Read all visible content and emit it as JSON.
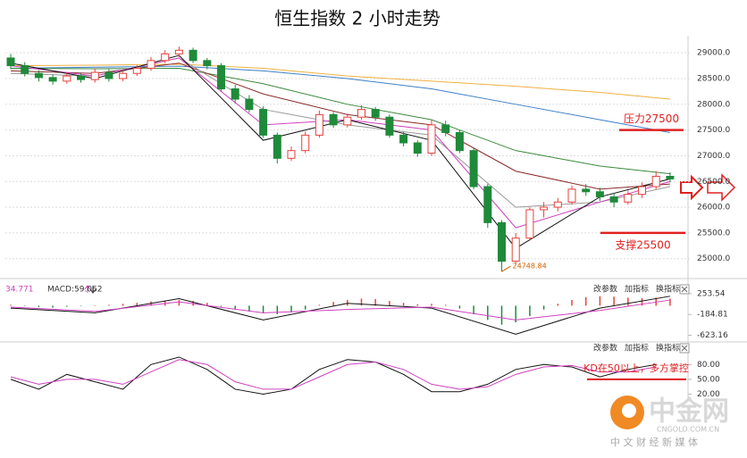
{
  "title": "恒生指数 2 小时走势",
  "watermark": {
    "name": "中金网",
    "domain": "CNGOLD.COM.CN",
    "slogan": "中 文 财 经 新 媒 体"
  },
  "chart_data": [
    {
      "type": "candlestick",
      "up_color": "#e8413c",
      "down_color": "#1f8a3a",
      "open": [
        28900,
        28750,
        28600,
        28520,
        28450,
        28550,
        28480,
        28620,
        28500,
        28600,
        28700,
        28850,
        28980,
        29050,
        28850,
        28750,
        28300,
        28100,
        27900,
        27400,
        26950,
        27100,
        27400,
        27800,
        27600,
        27750,
        27900,
        27750,
        27400,
        27250,
        27050,
        27600,
        27450,
        27100,
        26400,
        25700,
        24950,
        25400,
        25950,
        26000,
        26100,
        26350,
        26300,
        26200,
        26100,
        26250,
        26400,
        26600
      ],
      "high": [
        28980,
        28820,
        28660,
        28580,
        28620,
        28600,
        28700,
        28680,
        28660,
        28760,
        28920,
        29050,
        29120,
        29100,
        28900,
        28800,
        28380,
        28180,
        27960,
        27450,
        27180,
        27470,
        27880,
        27850,
        27820,
        27980,
        27950,
        27800,
        27460,
        27300,
        27700,
        27680,
        27500,
        27150,
        26450,
        25750,
        25500,
        26000,
        26100,
        26180,
        26420,
        26450,
        26380,
        26280,
        26320,
        26480,
        26700,
        26680
      ],
      "low": [
        28680,
        28540,
        28440,
        28380,
        28400,
        28420,
        28420,
        28440,
        28450,
        28550,
        28650,
        28800,
        28920,
        28800,
        28680,
        28250,
        28020,
        27840,
        27350,
        26850,
        26900,
        27050,
        27350,
        27540,
        27550,
        27700,
        27680,
        27350,
        27180,
        26980,
        27000,
        27380,
        27050,
        26350,
        25600,
        24748.84,
        24900,
        25350,
        25800,
        25920,
        26050,
        26220,
        26120,
        26000,
        26050,
        26180,
        26350,
        26480
      ],
      "close": [
        28750,
        28600,
        28520,
        28450,
        28550,
        28480,
        28620,
        28500,
        28600,
        28700,
        28850,
        28980,
        29050,
        28850,
        28750,
        28300,
        28100,
        27900,
        27400,
        26950,
        27100,
        27400,
        27800,
        27600,
        27750,
        27900,
        27750,
        27400,
        27250,
        27050,
        27600,
        27450,
        27100,
        26400,
        25700,
        24950,
        25400,
        25950,
        26000,
        26100,
        26350,
        26300,
        26200,
        26100,
        26250,
        26400,
        26600,
        26550
      ],
      "ma_x": [
        0,
        6,
        12,
        18,
        24,
        30,
        36,
        42,
        47
      ],
      "ma_lines": [
        {
          "color": "#f0b040",
          "values": [
            28750,
            28760,
            28780,
            28700,
            28550,
            28450,
            28350,
            28230,
            28100
          ]
        },
        {
          "color": "#3d7fc8",
          "values": [
            28700,
            28720,
            28740,
            28650,
            28500,
            28300,
            28000,
            27700,
            27450
          ]
        },
        {
          "color": "#3a8a3a",
          "values": [
            28700,
            28690,
            28700,
            28400,
            28000,
            27700,
            27100,
            26800,
            26650
          ]
        },
        {
          "color": "#8b2a2a",
          "values": [
            28650,
            28600,
            28800,
            28200,
            27800,
            27600,
            26700,
            26350,
            26450
          ]
        },
        {
          "color": "#999999",
          "values": [
            28600,
            28550,
            28900,
            27900,
            27600,
            27400,
            26000,
            26100,
            26400
          ]
        },
        {
          "color": "#d040c0",
          "values": [
            28750,
            28550,
            28900,
            27600,
            27700,
            27500,
            25600,
            26100,
            26500
          ]
        },
        {
          "color": "#111111",
          "values": [
            28800,
            28500,
            28950,
            27300,
            27700,
            27300,
            25200,
            26200,
            26550
          ]
        }
      ],
      "annotations": [
        {
          "text": "压力27500",
          "value": 27500
        },
        {
          "text": "支撑25500",
          "value": 25500
        }
      ],
      "ylim": [
        24700,
        29350
      ],
      "yticks": [
        {
          "value": 25000,
          "label": "25000.0"
        },
        {
          "value": 25500,
          "label": "25500.0"
        },
        {
          "value": 26000,
          "label": "26000.0"
        },
        {
          "value": 26500,
          "label": "26500.0"
        },
        {
          "value": 27000,
          "label": "27000.0"
        },
        {
          "value": 27500,
          "label": "27500.0"
        },
        {
          "value": 28000,
          "label": "28000.0"
        },
        {
          "value": 28500,
          "label": "28500.0"
        },
        {
          "value": 29000,
          "label": "29000.0"
        }
      ],
      "grid": true
    },
    {
      "type": "macd",
      "header": [
        "34.771",
        "MACD:59.062"
      ],
      "buttons": [
        "改参数",
        "加指标",
        "换指标"
      ],
      "up_color": "#e8413c",
      "down_color": "#1f8a3a",
      "histogram": [
        20,
        -10,
        -30,
        -40,
        -20,
        -10,
        10,
        20,
        40,
        60,
        90,
        110,
        120,
        100,
        60,
        -20,
        -80,
        -120,
        -160,
        -180,
        -140,
        -80,
        20,
        80,
        120,
        150,
        140,
        100,
        60,
        30,
        40,
        20,
        -60,
        -180,
        -300,
        -400,
        -350,
        -220,
        -80,
        40,
        120,
        180,
        200,
        190,
        170,
        160,
        170,
        150
      ],
      "x": [
        0,
        6,
        12,
        18,
        24,
        30,
        36,
        42,
        47
      ],
      "lines": [
        {
          "color": "#111111",
          "values": [
            -50,
            -150,
            150,
            -300,
            50,
            -50,
            -600,
            -50,
            200
          ]
        },
        {
          "color": "#d040c0",
          "values": [
            -30,
            -120,
            80,
            -150,
            -80,
            -30,
            -300,
            -100,
            120
          ]
        }
      ],
      "ylim": [
        -745,
        460
      ],
      "yticks": [
        253.54,
        -184.81,
        -623.16
      ]
    },
    {
      "type": "kd",
      "buttons": [
        "改参数",
        "加指标",
        "换指标"
      ],
      "x": [
        0,
        2,
        4,
        6,
        8,
        10,
        12,
        14,
        16,
        18,
        20,
        22,
        24,
        26,
        28,
        30,
        32,
        34,
        36,
        38,
        40,
        42,
        44,
        46
      ],
      "lines": [
        {
          "color": "#111111",
          "values": [
            50,
            30,
            60,
            45,
            30,
            80,
            95,
            70,
            30,
            20,
            30,
            70,
            90,
            85,
            60,
            25,
            25,
            40,
            70,
            80,
            75,
            55,
            70,
            80
          ]
        },
        {
          "color": "#d040c0",
          "values": [
            55,
            40,
            50,
            50,
            40,
            65,
            90,
            80,
            45,
            30,
            30,
            55,
            80,
            85,
            70,
            40,
            30,
            35,
            60,
            75,
            78,
            65,
            65,
            75
          ]
        }
      ],
      "annotations": [
        {
          "text": "KD在50以上，多方掌控",
          "value": 50
        }
      ],
      "ylim": [
        10,
        104
      ],
      "yticks": [
        {
          "value": 80,
          "label": "80.00"
        },
        {
          "value": 50,
          "label": "50.00"
        },
        {
          "value": 20,
          "label": "20.00"
        }
      ]
    }
  ]
}
